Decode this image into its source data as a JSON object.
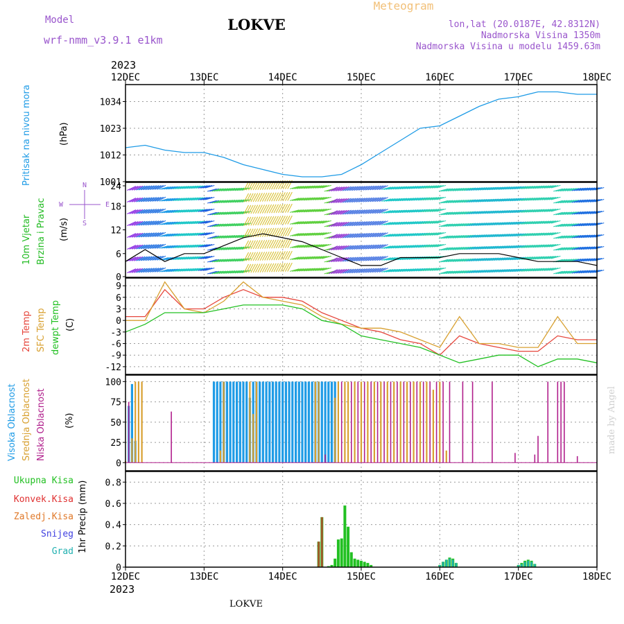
{
  "header": {
    "model_label": "Model",
    "model_name": "wrf-nmm_v3.9.1  e1km",
    "station": "LOKVE",
    "product": "Meteogram",
    "coords": "lon,lat (20.0187E, 42.8312N)",
    "elevation": "Nadmorska Visina 1350m",
    "model_elevation": "Nadmorska Visina u modelu 1459.63m",
    "year_top": "2023",
    "year_bottom": "2023",
    "footer": "LOKVE",
    "watermark": "made by Angel"
  },
  "dates": [
    "12DEC",
    "13DEC",
    "14DEC",
    "15DEC",
    "16DEC",
    "17DEC",
    "18DEC"
  ],
  "colors": {
    "pressure": "#1e9be6",
    "wind_label": "#22bb22",
    "temp2m": "#e6463c",
    "sfc": "#d8a030",
    "dew": "#22c022",
    "high_cloud": "#1e9be6",
    "mid_cloud": "#d8a030",
    "low_cloud": "#b01f8c",
    "total_precip": "#22c022",
    "conv": "#e03030",
    "frozen": "#e07828",
    "snow": "#4040e0",
    "grad": "#20b0b0",
    "purple": "#9955cc"
  },
  "panels": {
    "pressure": {
      "label": "Pritisak na nivou mora",
      "unit": "(hPa)",
      "ticks": [
        "1001",
        "1012",
        "1023",
        "1034"
      ]
    },
    "wind": {
      "label1": "10m Vjetar",
      "label2": "Brzina i Pravac",
      "unit": "(m/s)",
      "ticks": [
        "0",
        "6",
        "12",
        "18",
        "24"
      ],
      "compass": [
        "S",
        "N",
        "W",
        "E"
      ]
    },
    "temp": {
      "label1": "2m Temp",
      "label2": "SFC Temp",
      "label3": "dewpt Temp",
      "unit": "(C)",
      "ticks": [
        "-12",
        "-9",
        "-6",
        "-3",
        "0",
        "3",
        "6",
        "9"
      ]
    },
    "cloud": {
      "label1": "Visoka Oblacnost",
      "label2": "Srednja Oblacnost",
      "label3": "Niska Oblacnost",
      "unit": "(%)",
      "ticks": [
        "0",
        "25",
        "50",
        "75",
        "100"
      ]
    },
    "precip": {
      "legend": [
        "Ukupna Kisa",
        "Konvek.Kisa",
        "Zaledj.Kisa",
        "Snijeg",
        "Grad"
      ],
      "unit": "1hr Precip (mm)",
      "ticks": [
        "0",
        "0.2",
        "0.4",
        "0.6",
        "0.8"
      ]
    }
  },
  "chart_data": [
    {
      "type": "line",
      "title": "Pritisak na nivou mora",
      "ylabel": "(hPa)",
      "ylim": [
        1001,
        1041
      ],
      "series": [
        {
          "name": "Pritisak na nivou mora",
          "x": [
            0,
            6,
            12,
            18,
            24,
            30,
            36,
            42,
            48,
            54,
            60,
            66,
            72,
            78,
            84,
            90,
            96,
            102,
            108,
            114,
            120,
            126,
            132,
            138,
            144
          ],
          "values": [
            1015,
            1016,
            1014,
            1013,
            1013,
            1011,
            1008,
            1006,
            1004,
            1003,
            1003,
            1004,
            1008,
            1013,
            1018,
            1023,
            1024,
            1028,
            1032,
            1035,
            1036,
            1038,
            1038,
            1037,
            1037
          ]
        }
      ]
    },
    {
      "type": "line",
      "title": "10m Vjetar Brzina i Pravac",
      "ylabel": "(m/s)",
      "ylim": [
        0,
        24
      ],
      "series": [
        {
          "name": "Brzina",
          "x": [
            0,
            6,
            12,
            18,
            24,
            30,
            36,
            42,
            48,
            54,
            60,
            66,
            72,
            78,
            84,
            90,
            96,
            102,
            108,
            114,
            120,
            126,
            132,
            138,
            144
          ],
          "values": [
            4,
            7,
            4,
            6,
            6,
            8,
            10,
            11,
            10,
            9,
            7,
            5,
            3,
            3,
            5,
            5,
            5,
            6,
            6,
            6,
            5,
            4,
            4,
            4,
            3
          ]
        }
      ]
    },
    {
      "type": "line",
      "title": "2m Temp / SFC Temp / dewpt Temp",
      "ylabel": "(C)",
      "ylim": [
        -14,
        11
      ],
      "series": [
        {
          "name": "2m Temp",
          "x": [
            0,
            6,
            12,
            18,
            24,
            30,
            36,
            42,
            48,
            54,
            60,
            66,
            72,
            78,
            84,
            90,
            96,
            102,
            108,
            114,
            120,
            126,
            132,
            138,
            144
          ],
          "values": [
            1,
            1,
            8,
            3,
            3,
            6,
            8,
            6,
            6,
            5,
            2,
            0,
            -2,
            -3,
            -5,
            -6,
            -9,
            -4,
            -6,
            -7,
            -8,
            -8,
            -4,
            -5,
            -5
          ]
        },
        {
          "name": "SFC Temp",
          "x": [
            0,
            6,
            12,
            18,
            24,
            30,
            36,
            42,
            48,
            54,
            60,
            66,
            72,
            78,
            84,
            90,
            96,
            102,
            108,
            114,
            120,
            126,
            132,
            138,
            144
          ],
          "values": [
            0,
            0,
            10,
            3,
            2,
            5,
            10,
            6,
            5,
            4,
            1,
            -1,
            -2,
            -2,
            -3,
            -5,
            -7,
            1,
            -6,
            -6,
            -7,
            -7,
            1,
            -6,
            -6
          ]
        },
        {
          "name": "dewpt Temp",
          "x": [
            0,
            6,
            12,
            18,
            24,
            30,
            36,
            42,
            48,
            54,
            60,
            66,
            72,
            78,
            84,
            90,
            96,
            102,
            108,
            114,
            120,
            126,
            132,
            138,
            144
          ],
          "values": [
            -3,
            -1,
            2,
            2,
            2,
            3,
            4,
            4,
            4,
            3,
            0,
            -1,
            -4,
            -5,
            -6,
            -7,
            -9,
            -11,
            -10,
            -9,
            -9,
            -12,
            -10,
            -10,
            -11
          ]
        }
      ]
    },
    {
      "type": "bar",
      "title": "Visoka / Srednja / Niska Oblacnost",
      "ylabel": "(%)",
      "ylim": [
        0,
        100
      ],
      "series": [
        {
          "name": "Visoka Oblacnost",
          "x": [
            1,
            2,
            3,
            27,
            28,
            29,
            30,
            31,
            32,
            33,
            34,
            35,
            36,
            37,
            38,
            39,
            40,
            41,
            42,
            43,
            44,
            45,
            46,
            47,
            48,
            49,
            50,
            51,
            52,
            53,
            54,
            55,
            56,
            57,
            58,
            59,
            60,
            61,
            62,
            63,
            64
          ],
          "values": [
            70,
            97,
            27,
            100,
            100,
            100,
            100,
            100,
            100,
            100,
            100,
            100,
            100,
            100,
            80,
            100,
            100,
            100,
            100,
            100,
            100,
            100,
            100,
            100,
            100,
            100,
            100,
            100,
            100,
            100,
            100,
            100,
            100,
            100,
            100,
            100,
            100,
            100,
            100,
            100,
            100
          ]
        },
        {
          "name": "Srednja Oblacnost",
          "x": [
            0,
            2,
            3,
            4,
            5,
            29,
            30,
            38,
            39,
            40,
            58,
            59,
            64,
            65,
            67,
            68,
            70,
            72,
            74,
            76,
            78,
            80,
            82,
            84,
            86,
            88,
            90,
            92,
            94,
            96,
            98
          ],
          "values": [
            2,
            30,
            100,
            100,
            100,
            15,
            100,
            100,
            60,
            100,
            100,
            100,
            80,
            100,
            100,
            100,
            100,
            100,
            100,
            100,
            100,
            100,
            100,
            100,
            100,
            100,
            100,
            100,
            90,
            100,
            15
          ]
        },
        {
          "name": "Niska Oblacnost",
          "x": [
            1,
            14,
            61,
            66,
            69,
            71,
            73,
            75,
            77,
            79,
            81,
            83,
            85,
            87,
            89,
            91,
            93,
            95,
            97,
            99,
            103,
            106,
            112,
            119,
            125,
            126,
            129,
            132,
            133,
            134,
            138
          ],
          "values": [
            75,
            63,
            10,
            100,
            100,
            100,
            100,
            100,
            100,
            100,
            100,
            100,
            100,
            100,
            100,
            100,
            100,
            100,
            100,
            100,
            100,
            100,
            100,
            12,
            10,
            33,
            100,
            100,
            100,
            100,
            8
          ]
        }
      ]
    },
    {
      "type": "bar",
      "title": "1hr Precip",
      "ylabel": "1hr Precip (mm)",
      "ylim": [
        0,
        0.9
      ],
      "series": [
        {
          "name": "Ukupna Kisa",
          "x": [
            59,
            60,
            62,
            63,
            64,
            65,
            66,
            67,
            68,
            69,
            70,
            71,
            72,
            73,
            74,
            75,
            96,
            97,
            98,
            99,
            100,
            101,
            120,
            121,
            122,
            123,
            124,
            125
          ],
          "values": [
            0.24,
            0.47,
            0.01,
            0.02,
            0.08,
            0.26,
            0.27,
            0.58,
            0.38,
            0.14,
            0.08,
            0.07,
            0.06,
            0.05,
            0.04,
            0.02,
            0.02,
            0.05,
            0.07,
            0.09,
            0.08,
            0.04,
            0.02,
            0.04,
            0.06,
            0.07,
            0.06,
            0.03
          ]
        },
        {
          "name": "Zaledj.Kisa",
          "x": [
            59,
            60
          ],
          "values": [
            0.24,
            0.47
          ]
        },
        {
          "name": "Grad",
          "x": [
            96,
            97,
            98,
            99,
            100,
            101,
            120,
            121,
            122,
            123,
            124,
            125
          ],
          "values": [
            0.02,
            0.05,
            0.07,
            0.08,
            0.07,
            0.04,
            0.02,
            0.03,
            0.05,
            0.06,
            0.05,
            0.03
          ]
        }
      ]
    }
  ]
}
